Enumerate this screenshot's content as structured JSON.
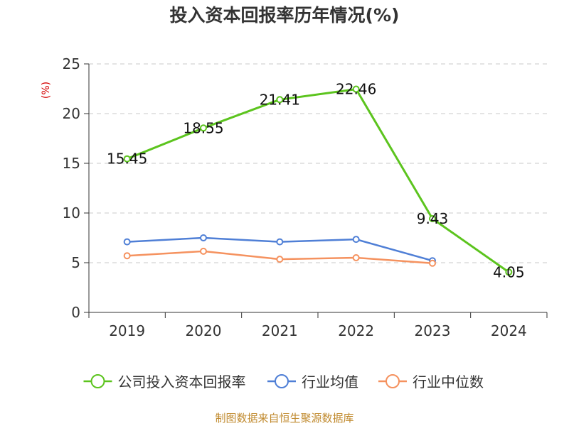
{
  "chart_data": {
    "type": "line",
    "title": "投入资本回报率历年情况(%)",
    "ylabel": "(%)",
    "xlabel": "",
    "categories": [
      "2019",
      "2020",
      "2021",
      "2022",
      "2023",
      "2024"
    ],
    "ylim": [
      0,
      25
    ],
    "yticks": [
      0,
      5,
      10,
      15,
      20,
      25
    ],
    "grid": true,
    "legend_position": "bottom",
    "series": [
      {
        "name": "公司投入资本回报率",
        "color": "#5cc41e",
        "values": [
          15.45,
          18.55,
          21.41,
          22.46,
          9.43,
          4.05
        ],
        "labels": [
          "15.45",
          "18.55",
          "21.41",
          "22.46",
          "9.43",
          "4.05"
        ]
      },
      {
        "name": "行业均值",
        "color": "#4f7fd6",
        "values": [
          7.1,
          7.5,
          7.1,
          7.35,
          5.2,
          null
        ]
      },
      {
        "name": "行业中位数",
        "color": "#f5925f",
        "values": [
          5.7,
          6.15,
          5.35,
          5.5,
          4.95,
          null
        ]
      }
    ],
    "source": "制图数据来自恒生聚源数据库"
  }
}
